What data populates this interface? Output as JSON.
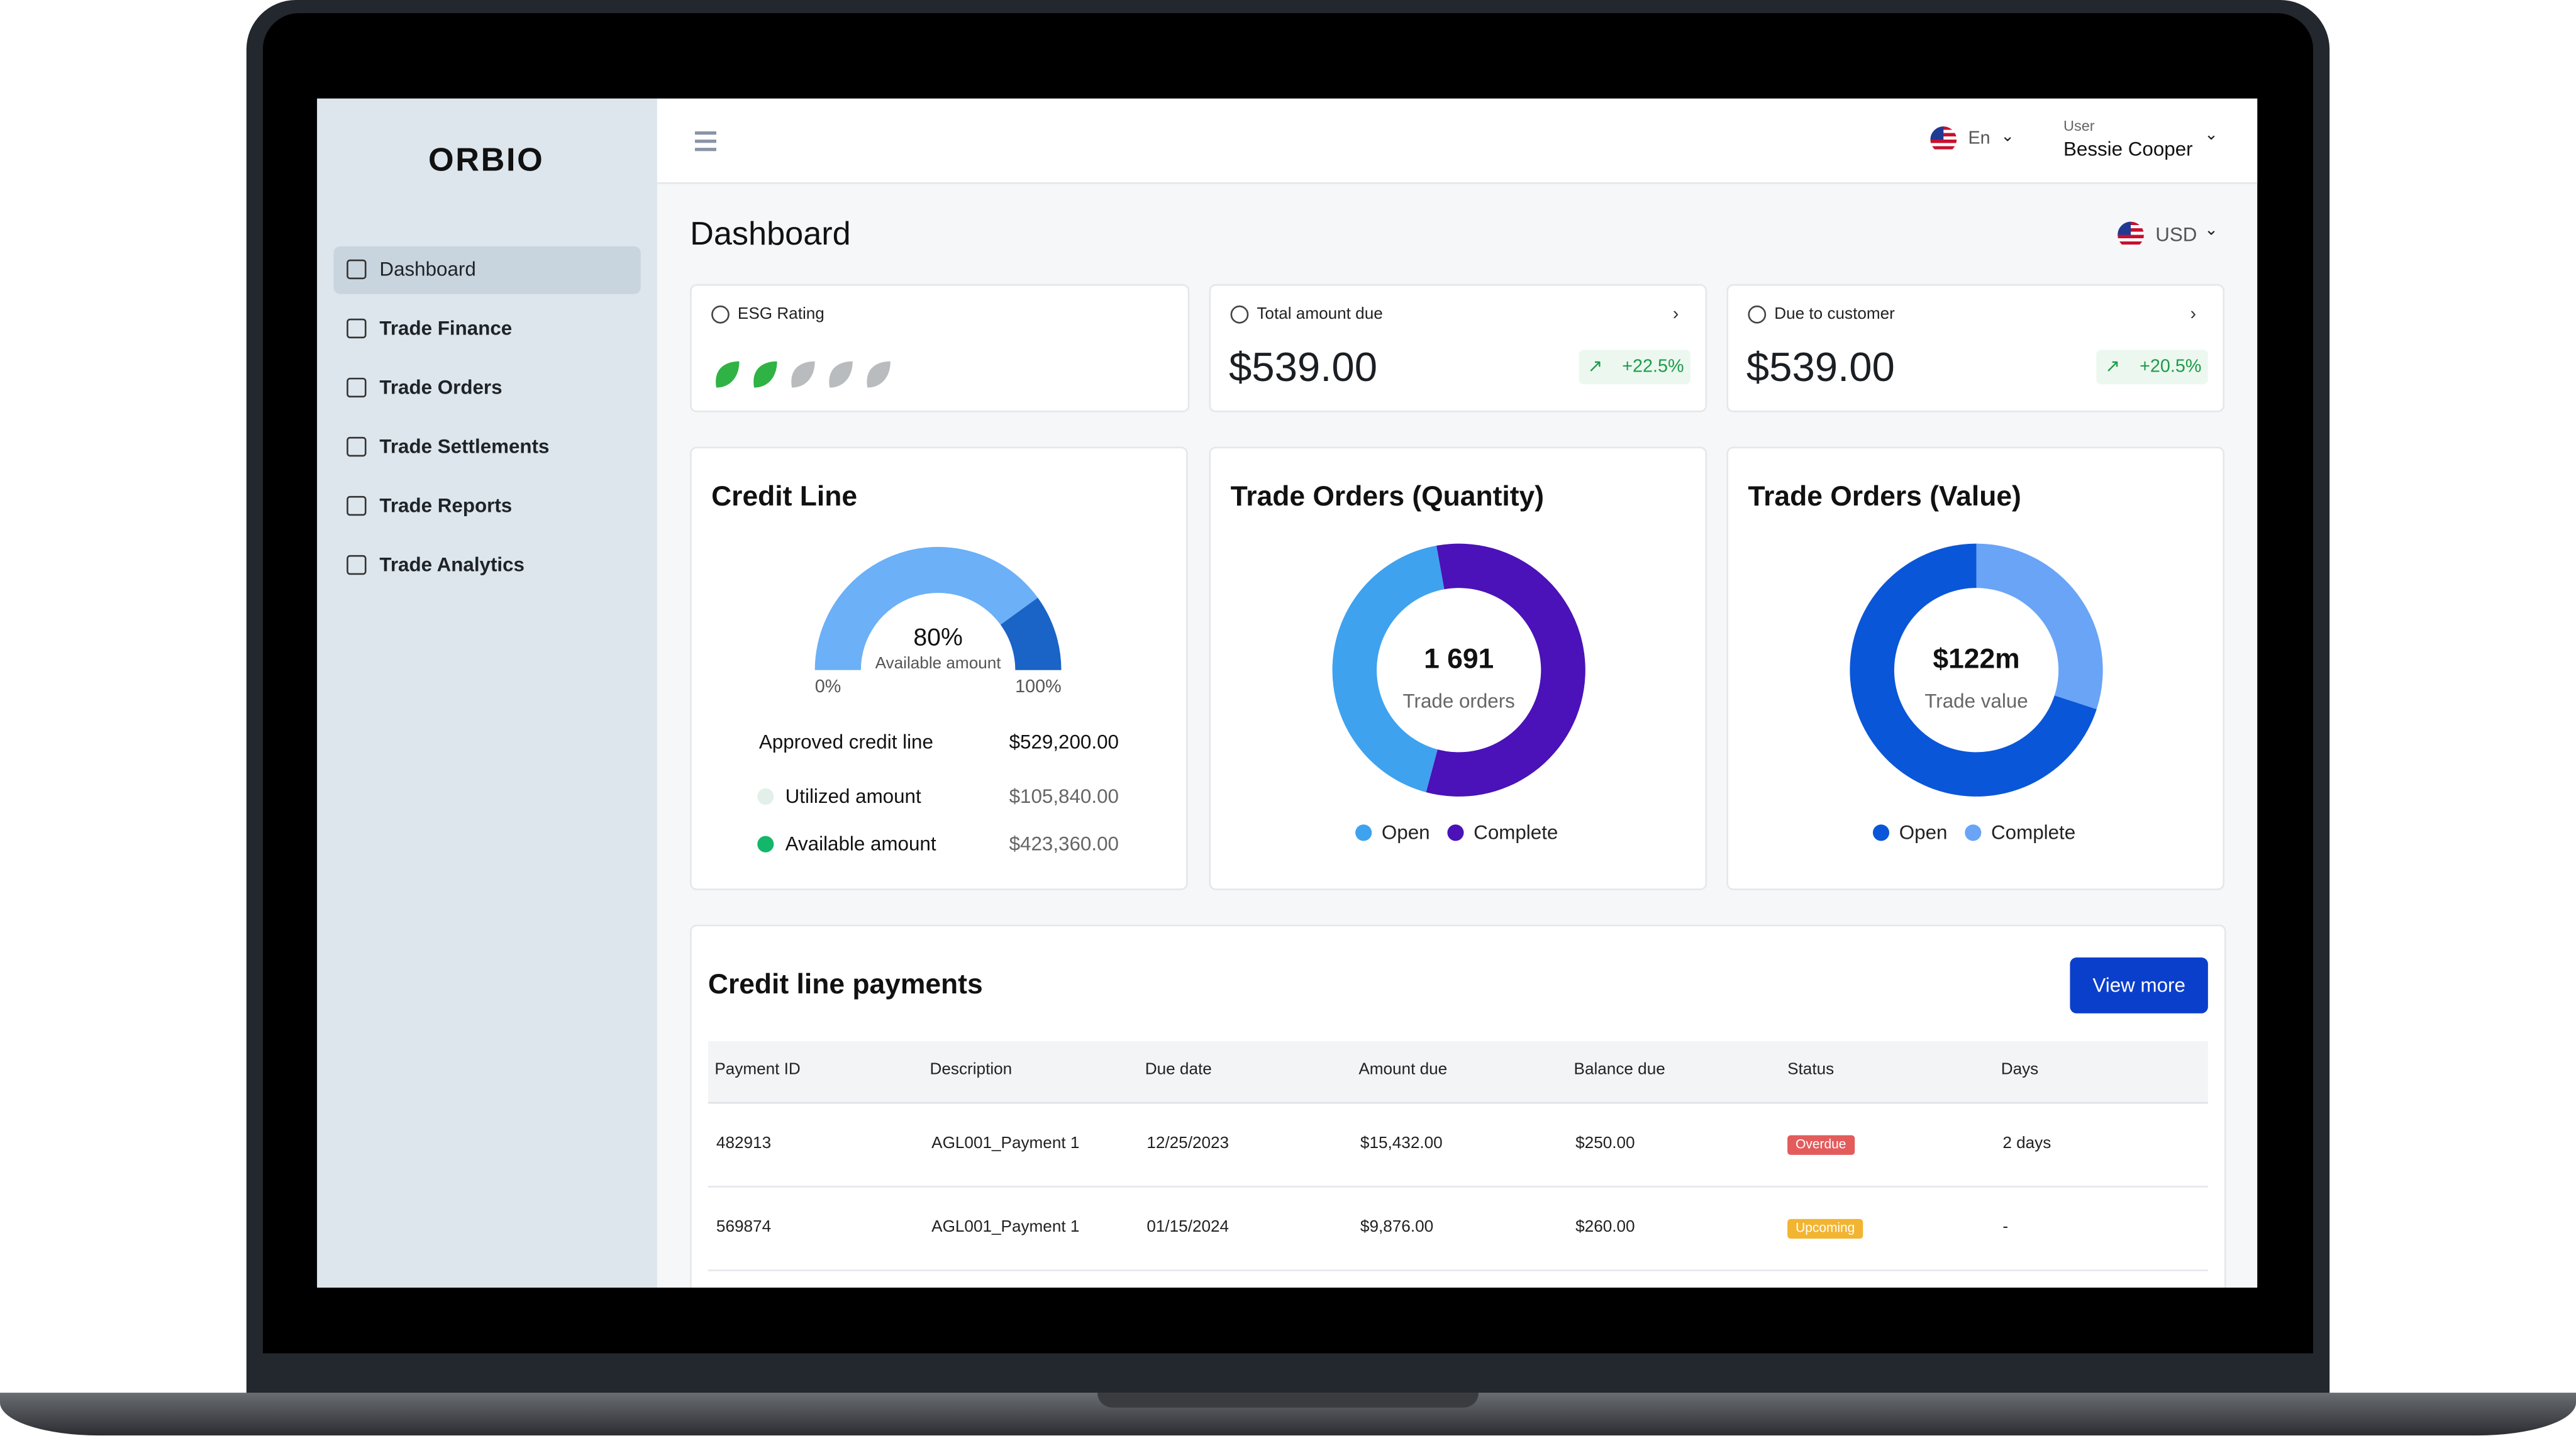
{
  "brand": "ORBIO",
  "sidebar": [
    "Dashboard",
    "Trade Finance",
    "Trade Orders",
    "Trade Settlements",
    "Trade Reports",
    "Trade Analytics"
  ],
  "header": {
    "language": "En",
    "user_label": "User",
    "user_name": "Bessie Cooper"
  },
  "page": {
    "title": "Dashboard",
    "currency": "USD"
  },
  "stats": [
    {
      "label": "ESG Rating",
      "leaves_filled": 2,
      "leaves_total": 5
    },
    {
      "label": "Total amount due",
      "value": "$539.00",
      "change": "+22.5%"
    },
    {
      "label": "Due to customer",
      "value": "$539.00",
      "change": "+20.5%"
    }
  ],
  "credit_line": {
    "title": "Credit Line",
    "gauge": {
      "value": 80,
      "label": "80%"
    },
    "gauge_caption": "Available amount",
    "gauge_ticks": [
      {
        "value": 0,
        "label": "0%"
      },
      {
        "value": 100,
        "label": "100%"
      }
    ],
    "rows": [
      {
        "label": "Approved credit line",
        "value": "$529,200.00"
      },
      {
        "label": "Utilized amount",
        "value": "$105,840.00",
        "color": "#e3f0ea"
      },
      {
        "label": "Available amount",
        "value": "$423,360.00",
        "color": "#12b76a"
      }
    ]
  },
  "donuts": [
    {
      "title": "Trade Orders (Quantity)",
      "center_value": "1 691",
      "center_label": "Trade orders",
      "segments": [
        {
          "name": "Open",
          "color": "#3ea2ef",
          "value": 43
        },
        {
          "name": "Complete",
          "color": "#4a12b8",
          "value": 57
        }
      ]
    },
    {
      "title": "Trade Orders (Value)",
      "center_value": "$122m",
      "center_label": "Trade value",
      "segments": [
        {
          "name": "Open",
          "color": "#0a56d9",
          "value": 70
        },
        {
          "name": "Complete",
          "color": "#6aa4f7",
          "value": 30
        }
      ]
    }
  ],
  "table": {
    "title": "Credit line payments",
    "button": "View more",
    "columns": [
      "Payment ID",
      "Description",
      "Due date",
      "Amount due",
      "Balance due",
      "Status",
      "Days"
    ],
    "rows": [
      [
        "482913",
        "AGL001_Payment 1",
        "12/25/2023",
        "$15,432.00",
        "$250.00",
        "Overdue",
        "2 days"
      ],
      [
        "569874",
        "AGL001_Payment 1",
        "01/15/2024",
        "$9,876.00",
        "$260.00",
        "Upcoming",
        "-"
      ]
    ],
    "status_colors": {
      "Overdue": "#e35b5b",
      "Upcoming": "#f2b431"
    }
  }
}
